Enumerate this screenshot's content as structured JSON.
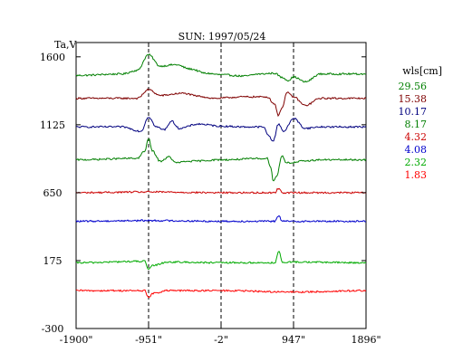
{
  "chart_data": {
    "type": "line",
    "title": "SUN: 1997/05/24",
    "ylabel": "Ta,V",
    "xlabel": "",
    "xlim": [
      -1900,
      1896
    ],
    "ylim": [
      -300,
      1700
    ],
    "x_ticks": [
      {
        "value": -1900,
        "label": "-1900\""
      },
      {
        "value": -951,
        "label": "-951\""
      },
      {
        "value": -2,
        "label": "-2\""
      },
      {
        "value": 947,
        "label": "947\""
      },
      {
        "value": 1896,
        "label": "1896\""
      }
    ],
    "y_ticks": [
      {
        "value": 1600,
        "label": "1600"
      },
      {
        "value": 1125,
        "label": "1125"
      },
      {
        "value": 650,
        "label": "650"
      },
      {
        "value": 175,
        "label": "175"
      },
      {
        "value": -300,
        "label": "-300"
      }
    ],
    "reference_lines_x": [
      -951,
      -2,
      947
    ],
    "legend": {
      "title": "wls[cm]",
      "placement": "right"
    },
    "series": [
      {
        "name": "29.56",
        "color": "#007f00",
        "baseline": 1475,
        "features": [
          [
            -1900,
            -5
          ],
          [
            -1300,
            5
          ],
          [
            -1100,
            30
          ],
          [
            -951,
            140
          ],
          [
            -800,
            60
          ],
          [
            -600,
            70
          ],
          [
            -400,
            40
          ],
          [
            -200,
            10
          ],
          [
            0,
            0
          ],
          [
            300,
            -10
          ],
          [
            500,
            5
          ],
          [
            700,
            10
          ],
          [
            800,
            -20
          ],
          [
            880,
            -40
          ],
          [
            947,
            -15
          ],
          [
            1100,
            -50
          ],
          [
            1300,
            5
          ],
          [
            1896,
            5
          ]
        ]
      },
      {
        "name": "15.38",
        "color": "#7f0000",
        "baseline": 1310,
        "features": [
          [
            -1900,
            0
          ],
          [
            -1100,
            0
          ],
          [
            -951,
            60
          ],
          [
            -800,
            20
          ],
          [
            -500,
            35
          ],
          [
            -300,
            15
          ],
          [
            -100,
            0
          ],
          [
            300,
            10
          ],
          [
            600,
            10
          ],
          [
            700,
            -40
          ],
          [
            750,
            -120
          ],
          [
            800,
            -60
          ],
          [
            860,
            40
          ],
          [
            947,
            10
          ],
          [
            1100,
            -50
          ],
          [
            1300,
            0
          ],
          [
            1896,
            0
          ]
        ]
      },
      {
        "name": "10.17",
        "color": "#00007f",
        "baseline": 1110,
        "features": [
          [
            -1900,
            0
          ],
          [
            -1300,
            0
          ],
          [
            -1050,
            -30
          ],
          [
            -951,
            70
          ],
          [
            -850,
            0
          ],
          [
            -750,
            -20
          ],
          [
            -650,
            40
          ],
          [
            -550,
            -10
          ],
          [
            -300,
            20
          ],
          [
            0,
            5
          ],
          [
            300,
            0
          ],
          [
            550,
            0
          ],
          [
            620,
            -60
          ],
          [
            680,
            -100
          ],
          [
            750,
            20
          ],
          [
            820,
            -30
          ],
          [
            947,
            60
          ],
          [
            1100,
            -10
          ],
          [
            1300,
            0
          ],
          [
            1896,
            0
          ]
        ]
      },
      {
        "name": "8.17",
        "color": "#007f00",
        "baseline": 880,
        "features": [
          [
            -1900,
            0
          ],
          [
            -1100,
            10
          ],
          [
            -1000,
            60
          ],
          [
            -951,
            150
          ],
          [
            -900,
            60
          ],
          [
            -800,
            -10
          ],
          [
            -680,
            20
          ],
          [
            -600,
            -20
          ],
          [
            -400,
            -10
          ],
          [
            0,
            0
          ],
          [
            600,
            10
          ],
          [
            650,
            -50
          ],
          [
            680,
            -150
          ],
          [
            720,
            -120
          ],
          [
            800,
            30
          ],
          [
            850,
            -20
          ],
          [
            947,
            -20
          ],
          [
            1050,
            -10
          ],
          [
            1300,
            0
          ],
          [
            1896,
            0
          ]
        ]
      },
      {
        "name": "4.32",
        "color": "#cc0000",
        "baseline": 650,
        "features": [
          [
            -1900,
            0
          ],
          [
            -951,
            5
          ],
          [
            0,
            0
          ],
          [
            700,
            0
          ],
          [
            750,
            30
          ],
          [
            800,
            0
          ],
          [
            1896,
            0
          ]
        ]
      },
      {
        "name": "4.08",
        "color": "#0000cc",
        "baseline": 450,
        "features": [
          [
            -1900,
            0
          ],
          [
            -951,
            5
          ],
          [
            0,
            0
          ],
          [
            700,
            0
          ],
          [
            750,
            40
          ],
          [
            800,
            0
          ],
          [
            1896,
            0
          ]
        ]
      },
      {
        "name": "2.32",
        "color": "#00aa00",
        "baseline": 160,
        "features": [
          [
            -1900,
            0
          ],
          [
            -1000,
            10
          ],
          [
            -951,
            -50
          ],
          [
            -900,
            -20
          ],
          [
            -700,
            5
          ],
          [
            0,
            0
          ],
          [
            700,
            0
          ],
          [
            760,
            80
          ],
          [
            800,
            0
          ],
          [
            947,
            5
          ],
          [
            1896,
            0
          ]
        ]
      },
      {
        "name": "1.83",
        "color": "#ff0000",
        "baseline": -35,
        "features": [
          [
            -1900,
            0
          ],
          [
            -1000,
            0
          ],
          [
            -951,
            -50
          ],
          [
            -900,
            -20
          ],
          [
            -700,
            0
          ],
          [
            0,
            0
          ],
          [
            947,
            -10
          ],
          [
            1896,
            0
          ]
        ]
      }
    ]
  }
}
